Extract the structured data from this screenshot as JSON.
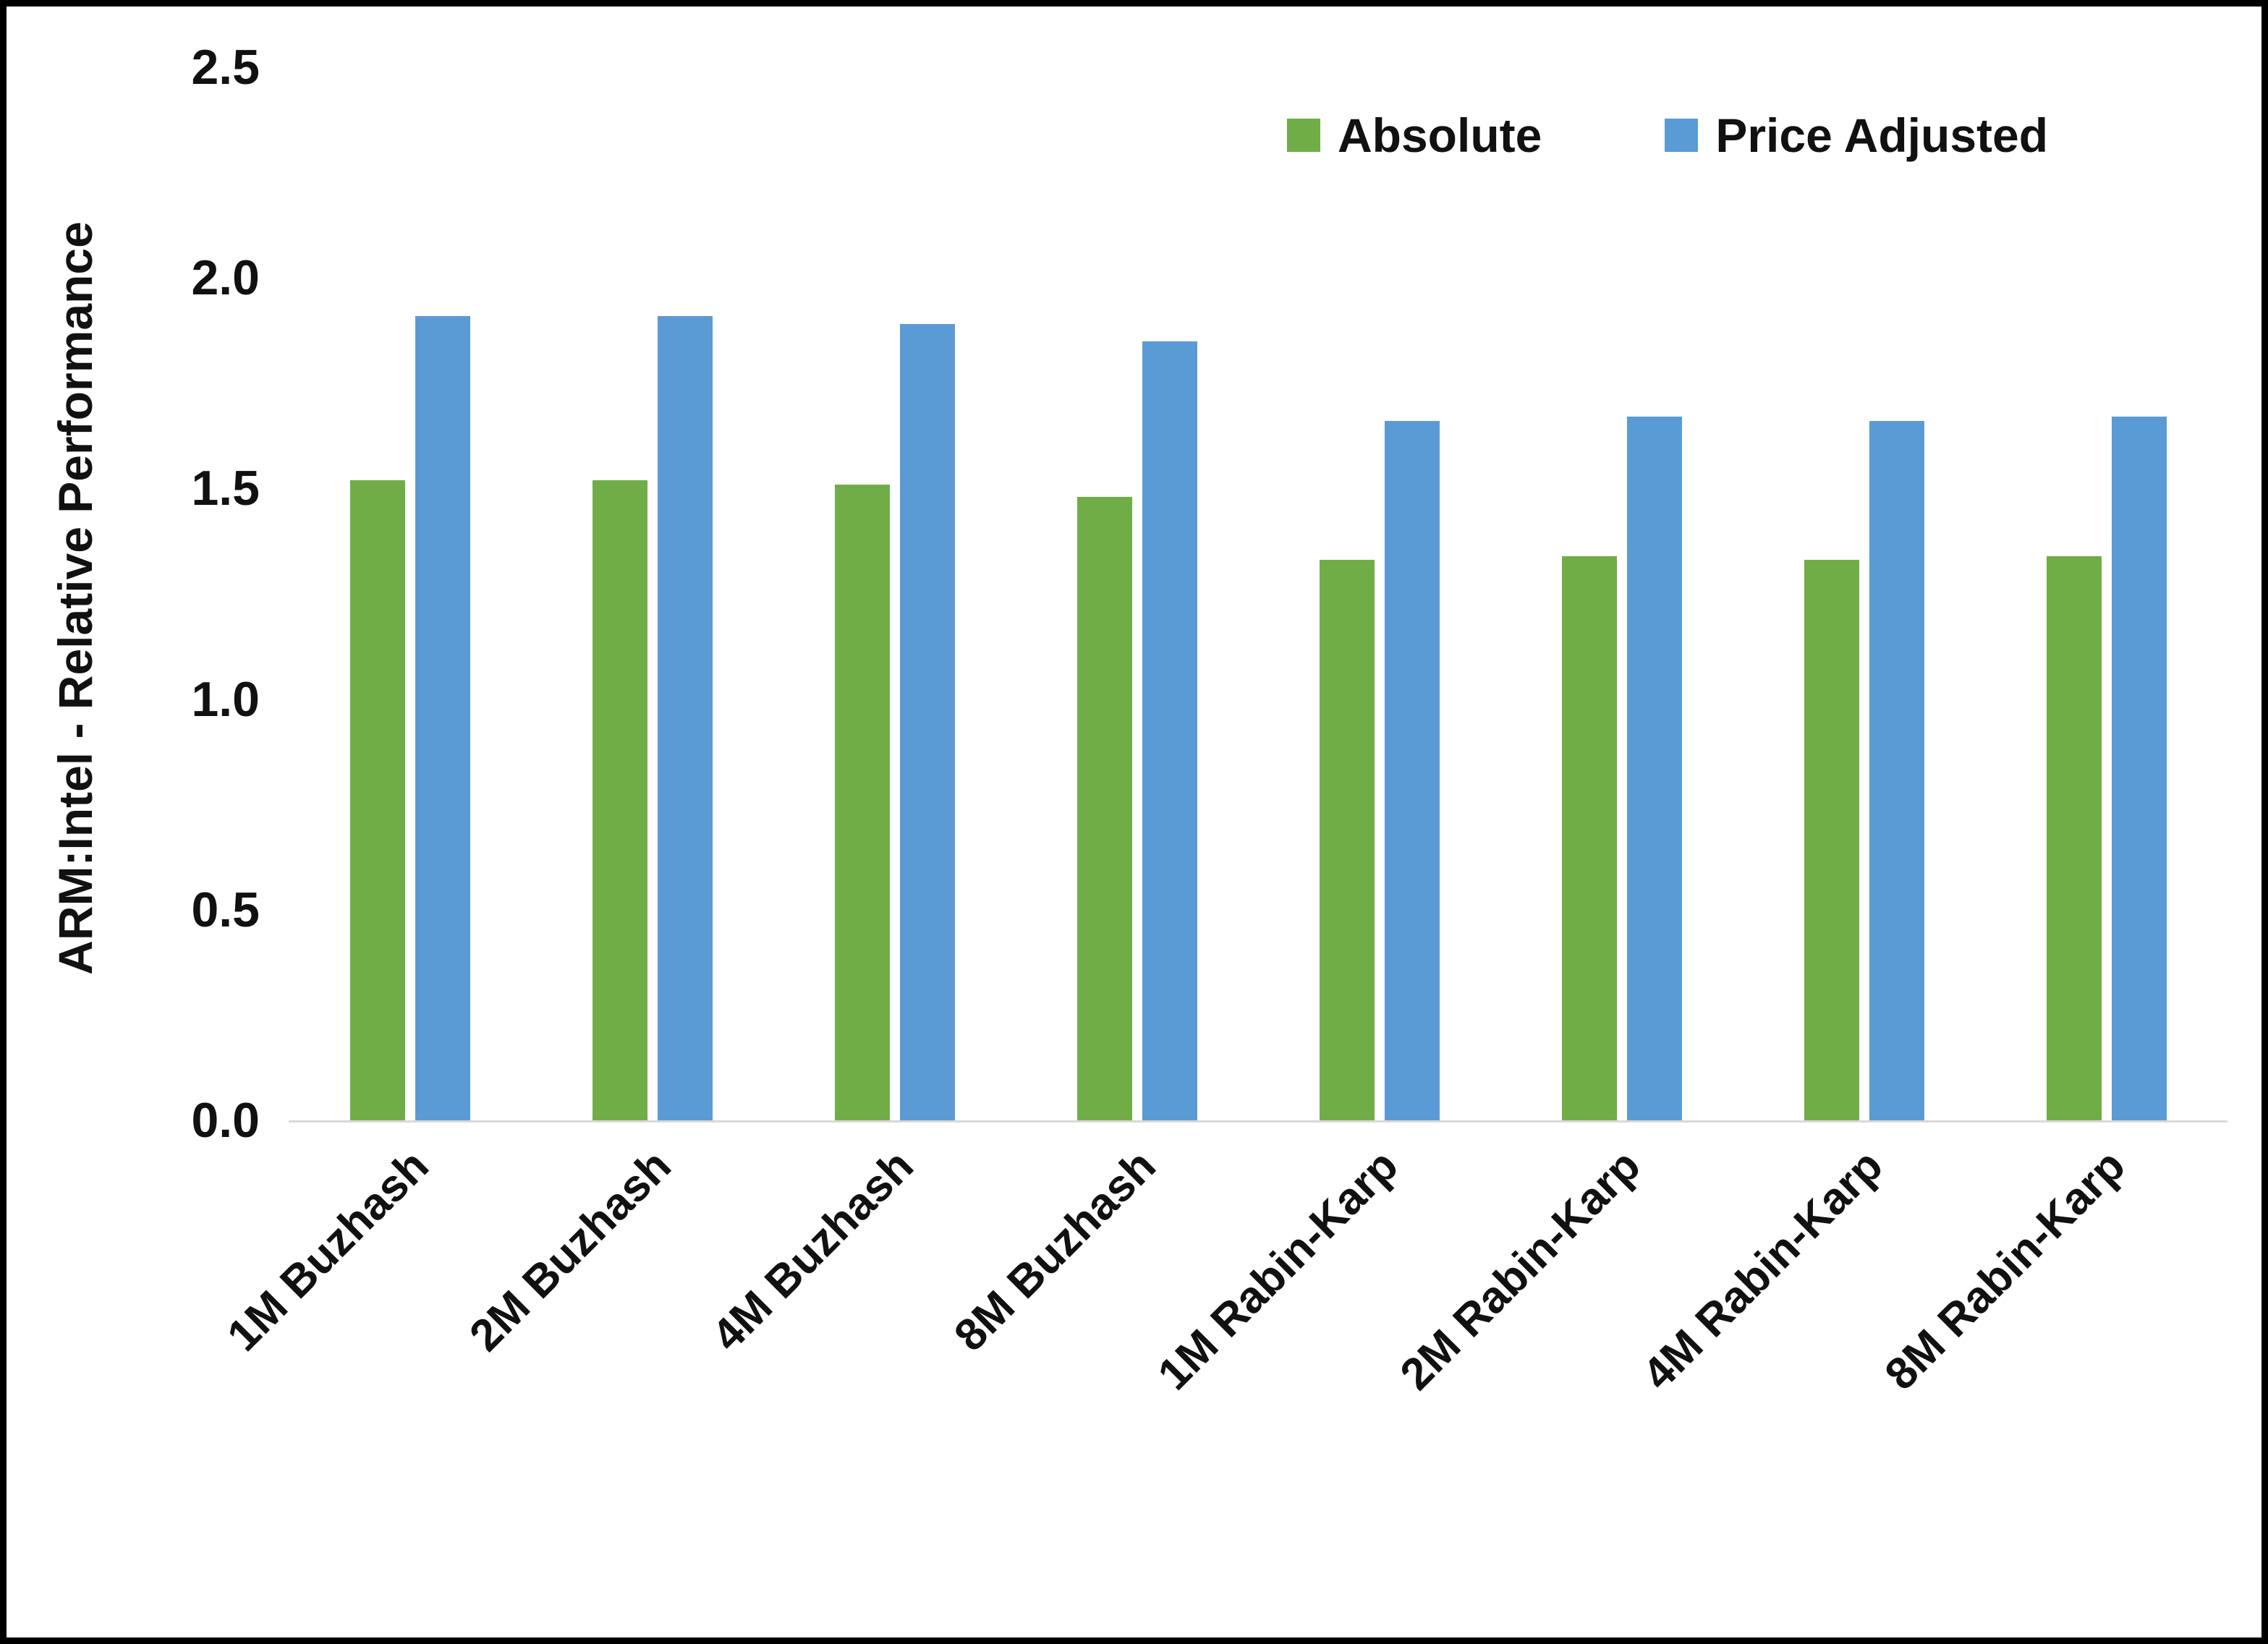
{
  "chart_data": {
    "type": "bar",
    "title": "",
    "ylabel": "ARM:Intel - Relative Performance",
    "xlabel": "",
    "ylim": [
      0,
      2.5
    ],
    "yticks": [
      0.0,
      0.5,
      1.0,
      1.5,
      2.0,
      2.5
    ],
    "ytick_labels": [
      "0.0",
      "0.5",
      "1.0",
      "1.5",
      "2.0",
      "2.5"
    ],
    "grid": false,
    "legend_position": "top-right",
    "categories": [
      "1M Buzhash",
      "2M Buzhash",
      "4M Buzhash",
      "8M Buzhash",
      "1M Rabin-Karp",
      "2M Rabin-Karp",
      "4M Rabin-Karp",
      "8M Rabin-Karp"
    ],
    "series": [
      {
        "name": "Absolute",
        "color": "#70AD47",
        "values": [
          1.52,
          1.52,
          1.51,
          1.48,
          1.33,
          1.34,
          1.33,
          1.34
        ]
      },
      {
        "name": "Price Adjusted",
        "color": "#5B9BD5",
        "values": [
          1.91,
          1.91,
          1.89,
          1.85,
          1.66,
          1.67,
          1.66,
          1.67
        ]
      }
    ]
  },
  "legend": {
    "absolute_label": "Absolute",
    "price_adjusted_label": "Price Adjusted"
  },
  "axes": {
    "y_title": "ARM:Intel - Relative Performance"
  },
  "colors": {
    "absolute": "#70AD47",
    "price_adjusted": "#5B9BD5",
    "axis_line": "#D9D9D9",
    "text": "#111111",
    "border": "#000000"
  }
}
